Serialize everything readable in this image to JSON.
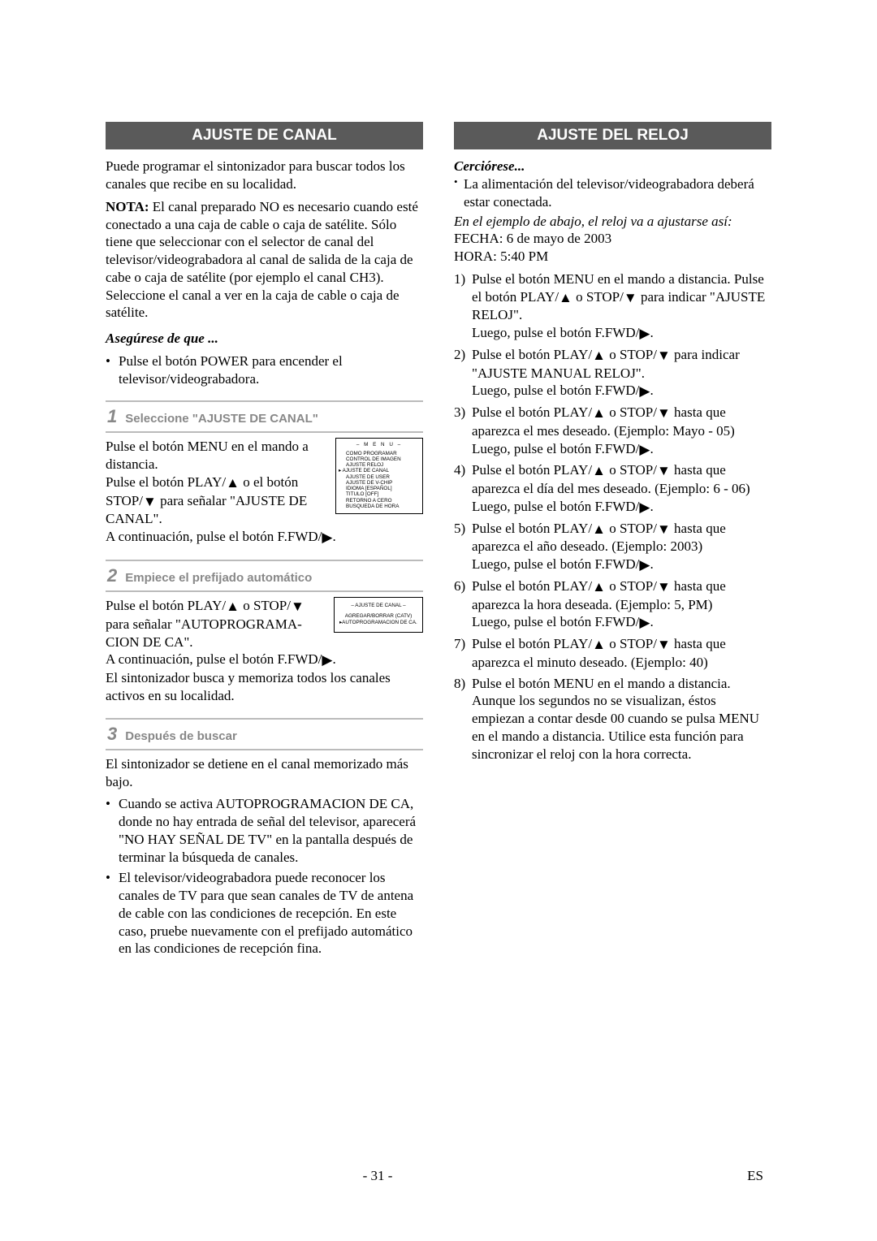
{
  "page": {
    "number": "- 31 -",
    "lang": "ES"
  },
  "left": {
    "header": "AJUSTE DE CANAL",
    "intro": "Puede programar el sintonizador para buscar todos los canales que recibe en su localidad.",
    "nota_label": "NOTA:",
    "nota_text": " El canal preparado NO es necesario cuando esté conectado a una caja de cable o caja de satélite. Sólo tiene que seleccionar con el selector de canal del televisor/videograbadora al canal de salida de la caja de cabe o caja de satélite (por ejemplo el canal CH3). Seleccione el canal a ver en la caja de cable o caja de satélite.",
    "assure": "Asegúrese de que ...",
    "assure_item": "Pulse el botón POWER para encender el televisor/videograbadora.",
    "step1": {
      "num": "1",
      "title": "Seleccione \"AJUSTE DE CANAL\"",
      "text_a": "Pulse el botón MENU en el mando a distancia.",
      "text_b1": "Pulse el botón PLAY/",
      "text_b2": " o el botón STOP/",
      "text_b3": " para señalar \"AJUSTE DE CANAL\".",
      "text_c1": "A continuación, pulse el botón F.FWD/",
      "text_c2": ".",
      "menu": {
        "title": "– M E N U –",
        "lines": [
          "COMO PROGRAMAR",
          "CONTROL DE IMAGEN",
          "AJUSTE RELOJ",
          "AJUSTE DE CANAL",
          "AJUSTE DE USER",
          "AJUSTE DE V-CHIP",
          "IDIOMA [ESPAÑOL]",
          "TITULO [OFF]",
          "RETORNO A CERO",
          "BUSQUEDA DE HORA"
        ],
        "arrow_index": 3
      }
    },
    "step2": {
      "num": "2",
      "title": "Empiece el prefijado automático",
      "text_a1": "Pulse el botón PLAY/",
      "text_a2": " o STOP/",
      "text_a3": " para señalar \"AUTOPROGRAMA-CION DE CA\".",
      "text_b1": "A continuación, pulse el botón F.FWD/",
      "text_b2": ".",
      "text_c": "El sintonizador busca y memoriza todos los canales activos en su localidad.",
      "menu": {
        "title": "– AJUSTE DE CANAL –",
        "line1": "AGREGAR/BORRAR (CATV)",
        "line2": "AUTOPROGRAMACION DE CA."
      }
    },
    "step3": {
      "num": "3",
      "title": "Después de buscar",
      "text_a": "El sintonizador se detiene en el canal memorizado más bajo.",
      "b1": "Cuando se activa AUTOPROGRAMACION DE CA, donde no hay entrada de señal del televisor, aparecerá \"NO HAY SEÑAL DE TV\" en la pantalla después de terminar la búsqueda de canales.",
      "b2": "El televisor/videograbadora puede reconocer los canales de TV para que sean canales de TV de antena de cable con las condiciones de recepción. En este caso, pruebe nuevamente con el prefijado automático en las condiciones de recepción fina."
    }
  },
  "right": {
    "header": "AJUSTE DEL RELOJ",
    "cerc": "Cerciórese...",
    "cerc_item": "La alimentación del televisor/videograbadora deberá estar conectada.",
    "example_line": "En el ejemplo de abajo, el reloj va a ajustarse así:",
    "fecha": "FECHA: 6 de mayo de 2003",
    "hora": "HORA: 5:40 PM",
    "steps": [
      {
        "n": "1)",
        "l1a": "Pulse el botón MENU en el mando a distancia. Pulse el botón PLAY/",
        "l1b": " o STOP/",
        "l1c": " para indicar \"AJUSTE RELOJ\".",
        "l2a": "Luego, pulse el botón F.FWD/",
        "l2b": "."
      },
      {
        "n": "2)",
        "l1a": "Pulse el botón PLAY/",
        "l1b": " o STOP/",
        "l1c": " para indicar \"AJUSTE MANUAL RELOJ\".",
        "l2a": "Luego, pulse el botón F.FWD/",
        "l2b": "."
      },
      {
        "n": "3)",
        "l1a": "Pulse el botón PLAY/",
        "l1b": " o STOP/",
        "l1c": " hasta que aparezca el mes deseado. (Ejemplo: Mayo - 05)",
        "l2a": "Luego, pulse el botón F.FWD/",
        "l2b": "."
      },
      {
        "n": "4)",
        "l1a": "Pulse el botón PLAY/",
        "l1b": " o STOP/",
        "l1c": " hasta que aparezca el día del mes deseado. (Ejemplo: 6 - 06)",
        "l2a": "Luego, pulse el botón F.FWD/",
        "l2b": "."
      },
      {
        "n": "5)",
        "l1a": "Pulse el botón PLAY/",
        "l1b": " o STOP/",
        "l1c": " hasta que aparezca el año deseado. (Ejemplo: 2003)",
        "l2a": "Luego, pulse el botón F.FWD/",
        "l2b": "."
      },
      {
        "n": "6)",
        "l1a": "Pulse el botón PLAY/",
        "l1b": " o STOP/",
        "l1c": " hasta que aparezca la hora deseada. (Ejemplo: 5, PM)",
        "l2a": "Luego, pulse el botón F.FWD/",
        "l2b": "."
      },
      {
        "n": "7)",
        "l1a": "Pulse el botón PLAY/",
        "l1b": " o STOP/",
        "l1c": " hasta que aparezca el minuto deseado. (Ejemplo: 40)",
        "l2a": "",
        "l2b": ""
      },
      {
        "n": "8)",
        "l1a": "Pulse el botón MENU en el mando a distancia. Aunque los segundos no se visualizan, éstos empiezan a contar desde 00 cuando se pulsa MENU en el mando a distancia. Utilice esta función para sincronizar el reloj con la hora correcta.",
        "l1b": "",
        "l1c": "",
        "l2a": "",
        "l2b": "",
        "noarrows": true
      }
    ]
  }
}
